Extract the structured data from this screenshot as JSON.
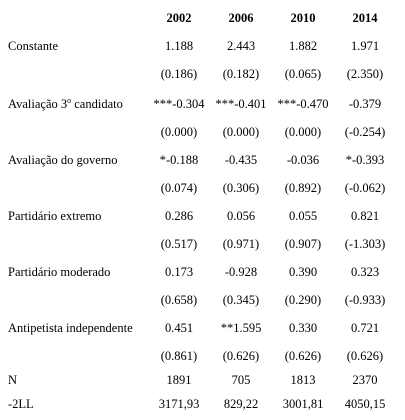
{
  "header": {
    "years": [
      "2002",
      "2006",
      "2010",
      "2014"
    ]
  },
  "rows": [
    {
      "label": "Constante",
      "values": [
        "1.188",
        "2.443",
        "1.882",
        "1.971"
      ]
    },
    {
      "label": "",
      "values": [
        "(0.186)",
        "(0.182)",
        "(0.065)",
        "(2.350)"
      ]
    },
    {
      "label_main": "Avaliação 3",
      "label_sup": "o",
      "label_rest": " candidato",
      "values": [
        "***-0.304",
        "***-0.401",
        "***-0.470",
        "-0.379"
      ]
    },
    {
      "label": "",
      "values": [
        "(0.000)",
        "(0.000)",
        "(0.000)",
        "(-0.254)"
      ]
    },
    {
      "label": "Avaliação do governo",
      "values": [
        "*-0.188",
        "-0.435",
        "-0.036",
        "*-0.393"
      ]
    },
    {
      "label": "",
      "values": [
        "(0.074)",
        "(0.306)",
        "(0.892)",
        "(-0.062)"
      ]
    },
    {
      "label": "Partidário extremo",
      "values": [
        "0.286",
        "0.056",
        "0.055",
        "0.821"
      ]
    },
    {
      "label": "",
      "values": [
        "(0.517)",
        "(0.971)",
        "(0.907)",
        "(-1.303)"
      ]
    },
    {
      "label": "Partidário moderado",
      "values": [
        "0.173",
        "-0.928",
        "0.390",
        "0.323"
      ]
    },
    {
      "label": "",
      "values": [
        "(0.658)",
        "(0.345)",
        "(0.290)",
        "(-0.933)"
      ]
    },
    {
      "label": "Antipetista independente",
      "values": [
        "0.451",
        "**1.595",
        "0.330",
        "0.721"
      ]
    },
    {
      "label": "",
      "values": [
        "(0.861)",
        "(0.626)",
        "(0.626)",
        "(0.626)"
      ]
    },
    {
      "label": "N",
      "values": [
        "1891",
        "705",
        "1813",
        "2370"
      ]
    },
    {
      "label": "-2LL",
      "values": [
        "3171,93",
        "829,22",
        "3001,81",
        "4050,15"
      ]
    }
  ]
}
